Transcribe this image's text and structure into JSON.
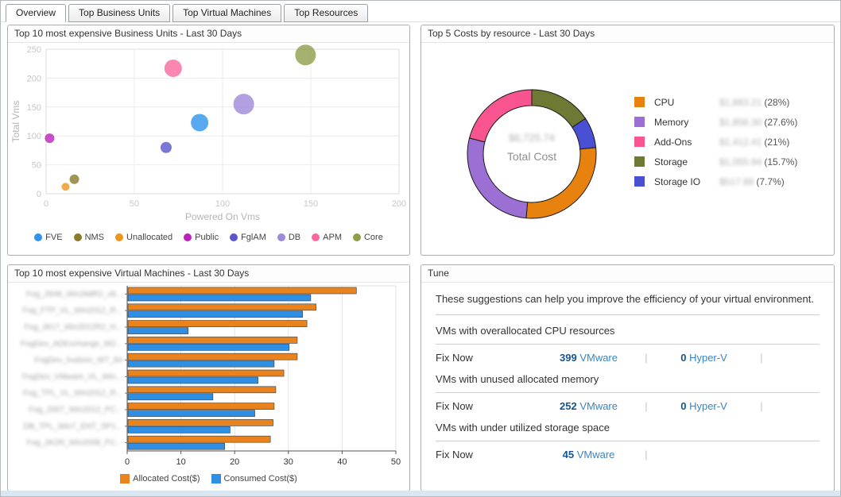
{
  "tabs": [
    {
      "label": "Overview",
      "active": true
    },
    {
      "label": "Top Business Units",
      "active": false
    },
    {
      "label": "Top Virtual Machines",
      "active": false
    },
    {
      "label": "Top Resources",
      "active": false
    }
  ],
  "panels": {
    "business_units": {
      "title": "Top 10 most expensive Business Units - Last 30 Days"
    },
    "costs": {
      "title": "Top 5 Costs by resource - Last 30 Days",
      "total_value": "$6,725.74",
      "total_label": "Total Cost"
    },
    "vms": {
      "title": "Top 10 most expensive Virtual Machines - Last 30 Days"
    },
    "tune": {
      "title": "Tune",
      "intro": "These suggestions can help you improve the efficiency of your virtual environment.",
      "sections": [
        {
          "heading": "VMs with overallocated CPU resources",
          "fix_label": "Fix Now",
          "items": [
            {
              "count": "399",
              "platform": "VMware"
            },
            {
              "count": "0",
              "platform": "Hyper-V"
            }
          ]
        },
        {
          "heading": "VMs with unused allocated memory",
          "fix_label": "Fix Now",
          "items": [
            {
              "count": "252",
              "platform": "VMware"
            },
            {
              "count": "0",
              "platform": "Hyper-V"
            }
          ]
        },
        {
          "heading": "VMs with under utilized storage space",
          "fix_label": "Fix Now",
          "items": [
            {
              "count": "45",
              "platform": "VMware"
            }
          ]
        }
      ]
    }
  },
  "chart_data": [
    {
      "type": "scatter",
      "title": "Top 10 most expensive Business Units - Last 30 Days",
      "xlabel": "Powered On Vms",
      "ylabel": "Total Vms",
      "xlim": [
        0,
        200
      ],
      "ylim": [
        0,
        250
      ],
      "xticks": [
        0,
        50,
        100,
        150,
        200
      ],
      "yticks": [
        0,
        50,
        100,
        150,
        200,
        250
      ],
      "grid": true,
      "legend_position": "bottom",
      "points": [
        {
          "name": "FVE",
          "color": "#3094ee",
          "x": 87,
          "y": 123,
          "r": 11
        },
        {
          "name": "NMS",
          "color": "#8a7a2a",
          "x": 16,
          "y": 25,
          "r": 6
        },
        {
          "name": "Unallocated",
          "color": "#f0941e",
          "x": 11,
          "y": 12,
          "r": 5
        },
        {
          "name": "Public",
          "color": "#bb22bb",
          "x": 2,
          "y": 96,
          "r": 6
        },
        {
          "name": "FglAM",
          "color": "#5a55cc",
          "x": 68,
          "y": 80,
          "r": 7
        },
        {
          "name": "DB",
          "color": "#9d8ad8",
          "x": 112,
          "y": 155,
          "r": 13
        },
        {
          "name": "APM",
          "color": "#f8699e",
          "x": 72,
          "y": 217,
          "r": 11
        },
        {
          "name": "Core",
          "color": "#8f9e4a",
          "x": 147,
          "y": 240,
          "r": 13
        }
      ]
    },
    {
      "type": "pie",
      "title": "Top 5 Costs by resource - Last 30 Days",
      "center_value": "$6,725.74",
      "center_label": "Total Cost",
      "slices": [
        {
          "name": "CPU",
          "color": "#e8820f",
          "value": "$1,883.21",
          "pct": 28.0,
          "pct_label": "(28%)"
        },
        {
          "name": "Memory",
          "color": "#9b6fd4",
          "value": "$1,856.30",
          "pct": 27.6,
          "pct_label": "(27.6%)"
        },
        {
          "name": "Add-Ons",
          "color": "#f8548f",
          "value": "$1,412.41",
          "pct": 21.0,
          "pct_label": "(21%)"
        },
        {
          "name": "Storage",
          "color": "#6e7a33",
          "value": "$1,055.94",
          "pct": 15.7,
          "pct_label": "(15.7%)"
        },
        {
          "name": "Storage IO",
          "color": "#4a50d4",
          "value": "$517.88",
          "pct": 7.7,
          "pct_label": "(7.7%)"
        }
      ],
      "ring_order": [
        3,
        4,
        0,
        1,
        2
      ],
      "legend_position": "right"
    },
    {
      "type": "bar",
      "orientation": "horizontal",
      "title": "Top 10 most expensive Virtual Machines - Last 30 Days",
      "categories": [
        "Fog_2848_Win2k8R2_v8...",
        "Fog_FTP_VL_Win2012_R...",
        "Fog_2k17_Win2012R2_H...",
        "FogDev_ADExchange_W2...",
        "FogDev_hudson_W7_84",
        "FogDev_VMware_VL_Win...",
        "Fog_TPL_VL_Win2012_R...",
        "Fog_2007_Win2012_PC...",
        "DB_TPL_Win7_ENT_SP1...",
        "Fog_2K2R_Win2008_PC..."
      ],
      "categories_redacted": true,
      "series": [
        {
          "name": "Allocated Cost($)",
          "color": "#e8831d",
          "values": [
            42.5,
            35,
            33.3,
            31.5,
            31.5,
            29,
            27.5,
            27.2,
            27,
            26.5
          ]
        },
        {
          "name": "Consumed Cost($)",
          "color": "#2f8fe5",
          "values": [
            34,
            32.5,
            11.2,
            30,
            27.2,
            24.2,
            15.8,
            23.6,
            19,
            18
          ]
        }
      ],
      "xlim": [
        0,
        50
      ],
      "xticks": [
        0,
        10,
        20,
        30,
        40,
        50
      ],
      "grid": true,
      "legend_position": "bottom"
    }
  ]
}
